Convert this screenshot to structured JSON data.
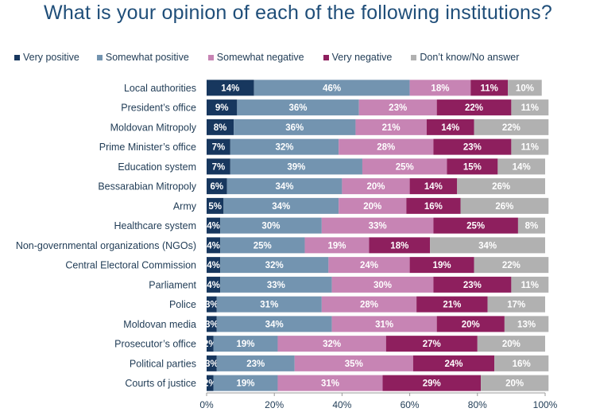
{
  "title": "What is your opinion of each of the following institutions?",
  "chart_data": {
    "type": "bar",
    "orientation": "horizontal-stacked-100",
    "title": "What is your opinion of each of the following institutions?",
    "xlim": [
      0,
      100
    ],
    "x_ticks": [
      "0%",
      "20%",
      "40%",
      "60%",
      "80%",
      "100%"
    ],
    "legend_position": "top",
    "categories": [
      "Local authorities",
      "President’s office",
      "Moldovan Mitropoly",
      "Prime Minister’s office",
      "Education system",
      "Bessarabian Mitropoly",
      "Army",
      "Healthcare system",
      "Non-governmental organizations (NGOs)",
      "Central Electoral Commission",
      "Parliament",
      "Police",
      "Moldovan media",
      "Prosecutor’s office",
      "Political parties",
      "Courts of justice"
    ],
    "series": [
      {
        "name": "Very positive",
        "color": "#17375e",
        "values": [
          14,
          9,
          8,
          7,
          7,
          6,
          5,
          4,
          4,
          4,
          4,
          3,
          3,
          2,
          3,
          2
        ]
      },
      {
        "name": "Somewhat positive",
        "color": "#7394b0",
        "values": [
          46,
          36,
          36,
          32,
          39,
          34,
          34,
          30,
          25,
          32,
          33,
          31,
          34,
          19,
          23,
          19
        ]
      },
      {
        "name": "Somewhat negative",
        "color": "#c784b4",
        "values": [
          18,
          23,
          21,
          28,
          25,
          20,
          20,
          33,
          19,
          24,
          30,
          28,
          31,
          32,
          35,
          31
        ]
      },
      {
        "name": "Very negative",
        "color": "#8e1f5e",
        "values": [
          11,
          22,
          14,
          23,
          15,
          14,
          16,
          25,
          18,
          19,
          23,
          21,
          20,
          27,
          24,
          29
        ]
      },
      {
        "name": "Don’t know/No answer",
        "color": "#b1b1b1",
        "values": [
          10,
          11,
          22,
          11,
          14,
          26,
          26,
          8,
          34,
          22,
          11,
          17,
          13,
          20,
          16,
          20
        ]
      }
    ]
  }
}
